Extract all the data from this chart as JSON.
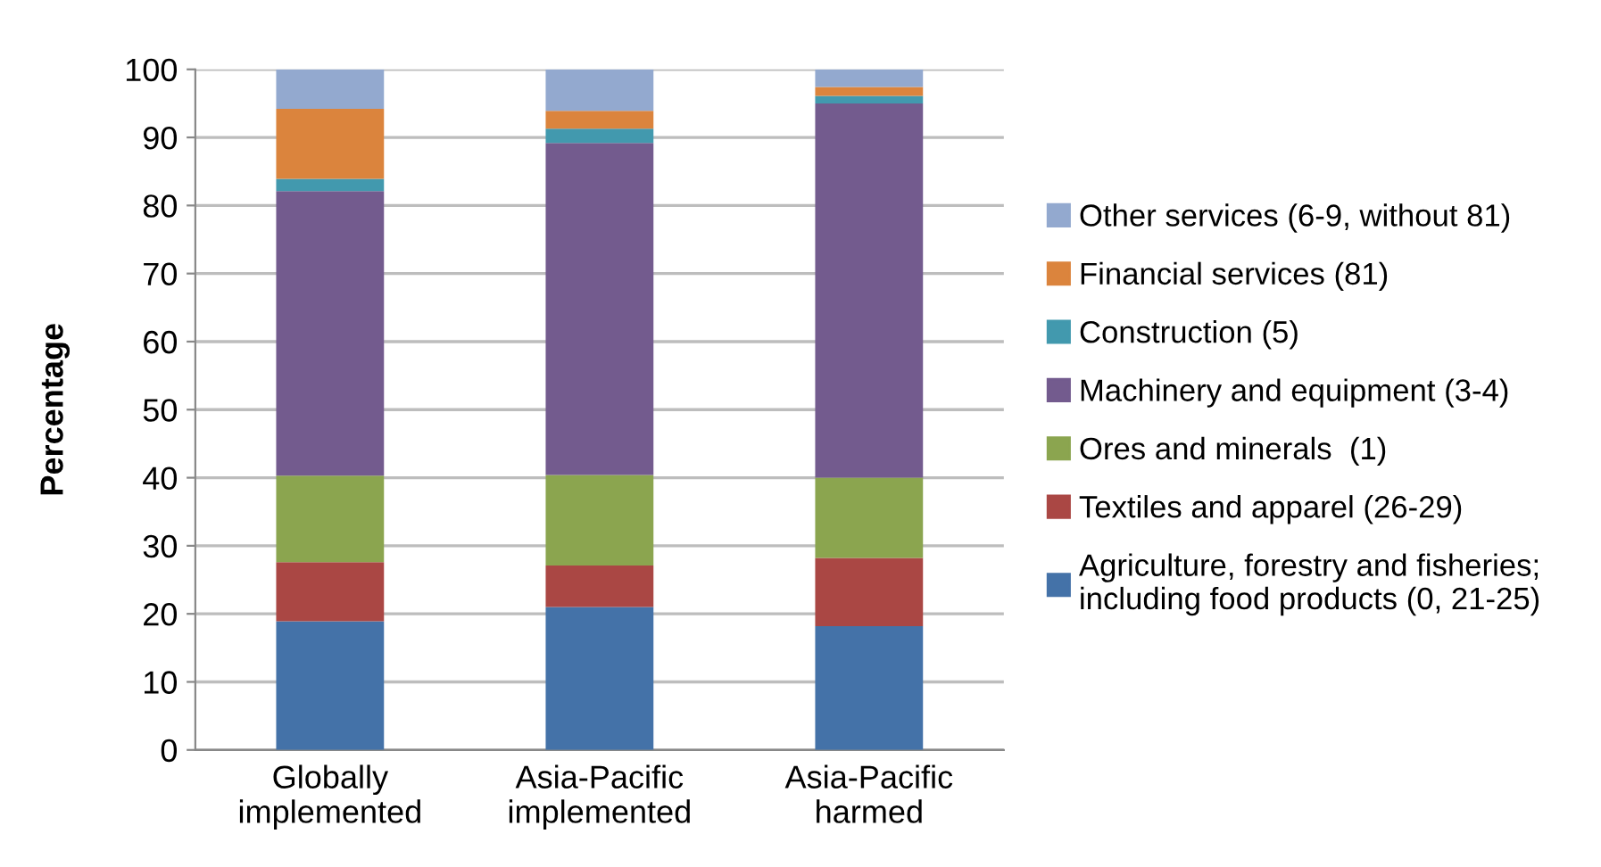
{
  "chart_data": {
    "type": "bar",
    "stacked": true,
    "ylabel": "Percentage",
    "categories": [
      "Globally\nimplemented",
      "Asia-Pacific\nimplemented",
      "Asia-Pacific\nharmed"
    ],
    "series": [
      {
        "name": "Agriculture, forestry and fisheries;\nincluding food products (0, 21-25)",
        "color": "#4472a8",
        "values": [
          18.9,
          21.0,
          18.2
        ]
      },
      {
        "name": "Textiles and apparel (26-29)",
        "color": "#aa4744",
        "values": [
          8.7,
          6.1,
          10.0
        ]
      },
      {
        "name": "Ores and minerals  (1)",
        "color": "#8ba54f",
        "values": [
          12.7,
          13.3,
          11.8
        ]
      },
      {
        "name": "Machinery and equipment (3-4)",
        "color": "#735b8e",
        "values": [
          41.8,
          48.8,
          55.0
        ]
      },
      {
        "name": "Construction (5)",
        "color": "#4299ae",
        "values": [
          1.8,
          2.1,
          1.1
        ]
      },
      {
        "name": "Financial services (81)",
        "color": "#db843d",
        "values": [
          10.3,
          2.6,
          1.3
        ]
      },
      {
        "name": "Other services (6-9, without 81)",
        "color": "#93a9cf",
        "values": [
          5.8,
          6.1,
          2.6
        ]
      }
    ],
    "ylim": [
      0,
      100
    ],
    "yticks": [
      0,
      10,
      20,
      30,
      40,
      50,
      60,
      70,
      80,
      90,
      100
    ],
    "grid": "y",
    "legend": "right"
  }
}
